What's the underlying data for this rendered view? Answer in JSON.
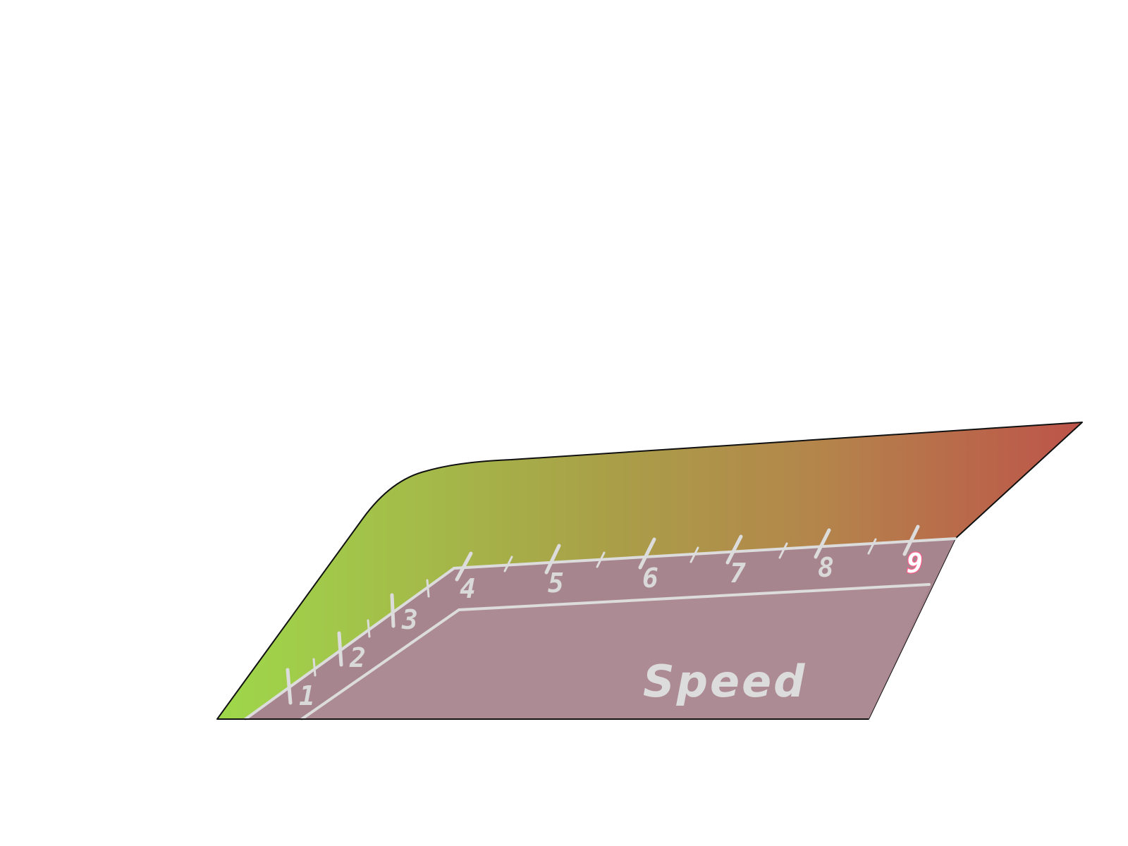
{
  "gauge": {
    "title": "Speed",
    "scale_labels": [
      "1",
      "2",
      "3",
      "4",
      "5",
      "6",
      "7",
      "8",
      "9"
    ],
    "current_value": 9,
    "colors": {
      "gradient_start": "#9ed94a",
      "gradient_mid": "#a9a048",
      "gradient_end": "#bd544a",
      "panel": "#a7858f",
      "panel_inner": "#ad8b95",
      "tick": "#dcdcdc",
      "active_highlight": "#ff5c8a"
    }
  }
}
